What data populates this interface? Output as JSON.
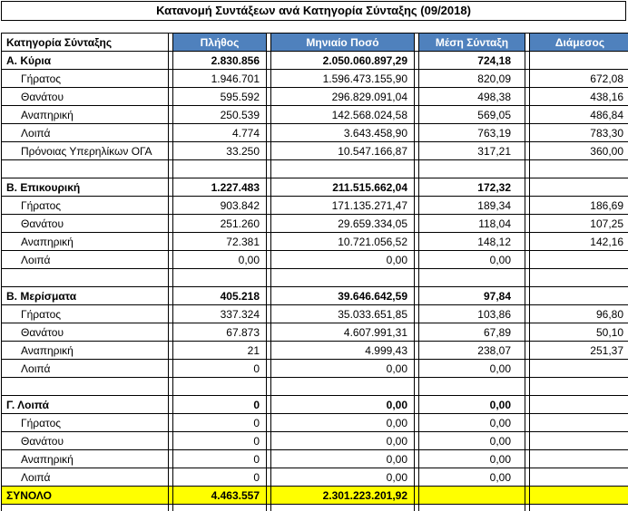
{
  "title": "Κατανομή Συντάξεων ανά Κατηγορία Σύνταξης (09/2018)",
  "columns": [
    "Κατηγορία Σύνταξης",
    "Πλήθος",
    "Μηνιαίο Ποσό",
    "Μέση Σύνταξη",
    "Διάμεσος"
  ],
  "rows": [
    {
      "type": "category",
      "label": "Α. Κύρια",
      "values": [
        "2.830.856",
        "2.050.060.897,29",
        "724,18",
        ""
      ]
    },
    {
      "type": "sub",
      "label": "Γήρατος",
      "values": [
        "1.946.701",
        "1.596.473.155,90",
        "820,09",
        "672,08"
      ]
    },
    {
      "type": "sub",
      "label": "Θανάτου",
      "values": [
        "595.592",
        "296.829.091,04",
        "498,38",
        "438,16"
      ]
    },
    {
      "type": "sub",
      "label": "Αναπηρική",
      "values": [
        "250.539",
        "142.568.024,58",
        "569,05",
        "486,84"
      ]
    },
    {
      "type": "sub",
      "label": "Λοιπά",
      "values": [
        "4.774",
        "3.643.458,90",
        "763,19",
        "783,30"
      ]
    },
    {
      "type": "sub",
      "label": "Πρόνοιας Υπερηλίκων ΟΓΑ",
      "values": [
        "33.250",
        "10.547.166,87",
        "317,21",
        "360,00"
      ]
    },
    {
      "type": "blank",
      "label": "",
      "values": [
        "",
        "",
        "",
        ""
      ]
    },
    {
      "type": "category",
      "label": "Β. Επικουρική",
      "values": [
        "1.227.483",
        "211.515.662,04",
        "172,32",
        ""
      ]
    },
    {
      "type": "sub",
      "label": "Γήρατος",
      "values": [
        "903.842",
        "171.135.271,47",
        "189,34",
        "186,69"
      ]
    },
    {
      "type": "sub",
      "label": "Θανάτου",
      "values": [
        "251.260",
        "29.659.334,05",
        "118,04",
        "107,25"
      ]
    },
    {
      "type": "sub",
      "label": "Αναπηρική",
      "values": [
        "72.381",
        "10.721.056,52",
        "148,12",
        "142,16"
      ]
    },
    {
      "type": "sub",
      "label": "Λοιπά",
      "values": [
        "0,00",
        "0,00",
        "0,00",
        ""
      ]
    },
    {
      "type": "blank",
      "label": "",
      "values": [
        "",
        "",
        "",
        ""
      ]
    },
    {
      "type": "category",
      "label": "Β. Μερίσματα",
      "values": [
        "405.218",
        "39.646.642,59",
        "97,84",
        ""
      ]
    },
    {
      "type": "sub",
      "label": "Γήρατος",
      "values": [
        "337.324",
        "35.033.651,85",
        "103,86",
        "96,80"
      ]
    },
    {
      "type": "sub",
      "label": "Θανάτου",
      "values": [
        "67.873",
        "4.607.991,31",
        "67,89",
        "50,10"
      ]
    },
    {
      "type": "sub",
      "label": "Αναπηρική",
      "values": [
        "21",
        "4.999,43",
        "238,07",
        "251,37"
      ]
    },
    {
      "type": "sub",
      "label": "Λοιπά",
      "values": [
        "0",
        "0,00",
        "0,00",
        ""
      ]
    },
    {
      "type": "blank",
      "label": "",
      "values": [
        "",
        "",
        "",
        ""
      ]
    },
    {
      "type": "category",
      "label": "Γ. Λοιπά",
      "values": [
        "0",
        "0,00",
        "0,00",
        ""
      ]
    },
    {
      "type": "sub",
      "label": "Γήρατος",
      "values": [
        "0",
        "0,00",
        "0,00",
        ""
      ]
    },
    {
      "type": "sub",
      "label": "Θανάτου",
      "values": [
        "0",
        "0,00",
        "0,00",
        ""
      ]
    },
    {
      "type": "sub",
      "label": "Αναπηρική",
      "values": [
        "0",
        "0,00",
        "0,00",
        ""
      ]
    },
    {
      "type": "sub",
      "label": "Λοιπά",
      "values": [
        "0",
        "0,00",
        "0,00",
        ""
      ]
    }
  ],
  "total": {
    "label": "ΣΥΝΟΛΟ",
    "values": [
      "4.463.557",
      "2.301.223.201,92",
      "",
      ""
    ]
  },
  "colors": {
    "header_bg": "#4F81BD",
    "header_text": "#FFFFFF",
    "total_bg": "#FFFF00",
    "border": "#000000"
  }
}
